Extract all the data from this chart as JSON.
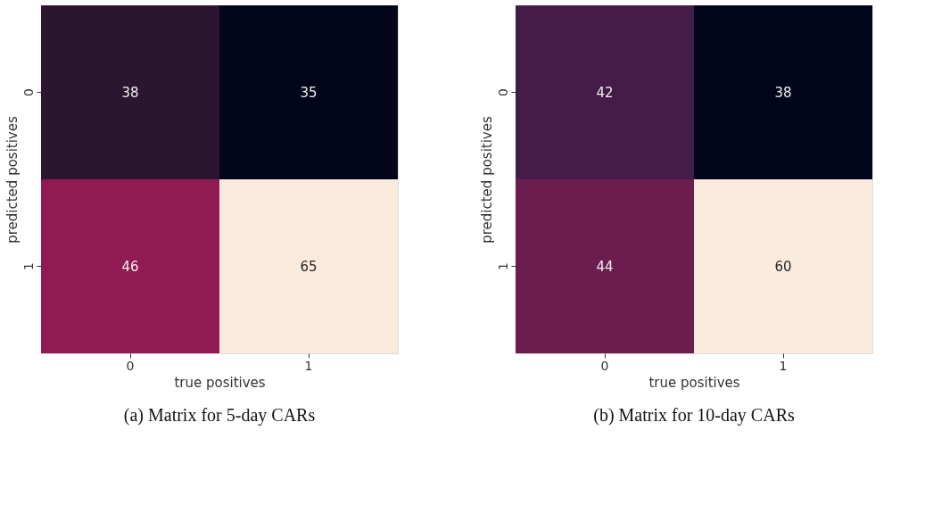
{
  "chart_data": [
    {
      "type": "heatmap",
      "title": "(a) Matrix for 5-day CARs",
      "xlabel": "true positives",
      "ylabel": "predicted positives",
      "categories": [
        "0",
        "1"
      ],
      "y_categories": [
        "0",
        "1"
      ],
      "cells": [
        [
          38,
          35
        ],
        [
          46,
          65
        ]
      ],
      "colors": [
        "#2a1631",
        "#03051a",
        "#8f1b52",
        "#faebdd"
      ],
      "data_labels": true
    },
    {
      "type": "heatmap",
      "title": "(b) Matrix for 10-day CARs",
      "xlabel": "true positives",
      "ylabel": "predicted positives",
      "categories": [
        "0",
        "1"
      ],
      "y_categories": [
        "0",
        "1"
      ],
      "cells": [
        [
          42,
          38
        ],
        [
          44,
          60
        ]
      ],
      "colors": [
        "#451c47",
        "#03051a",
        "#6b1d50",
        "#faebdd"
      ],
      "data_labels": true
    }
  ]
}
